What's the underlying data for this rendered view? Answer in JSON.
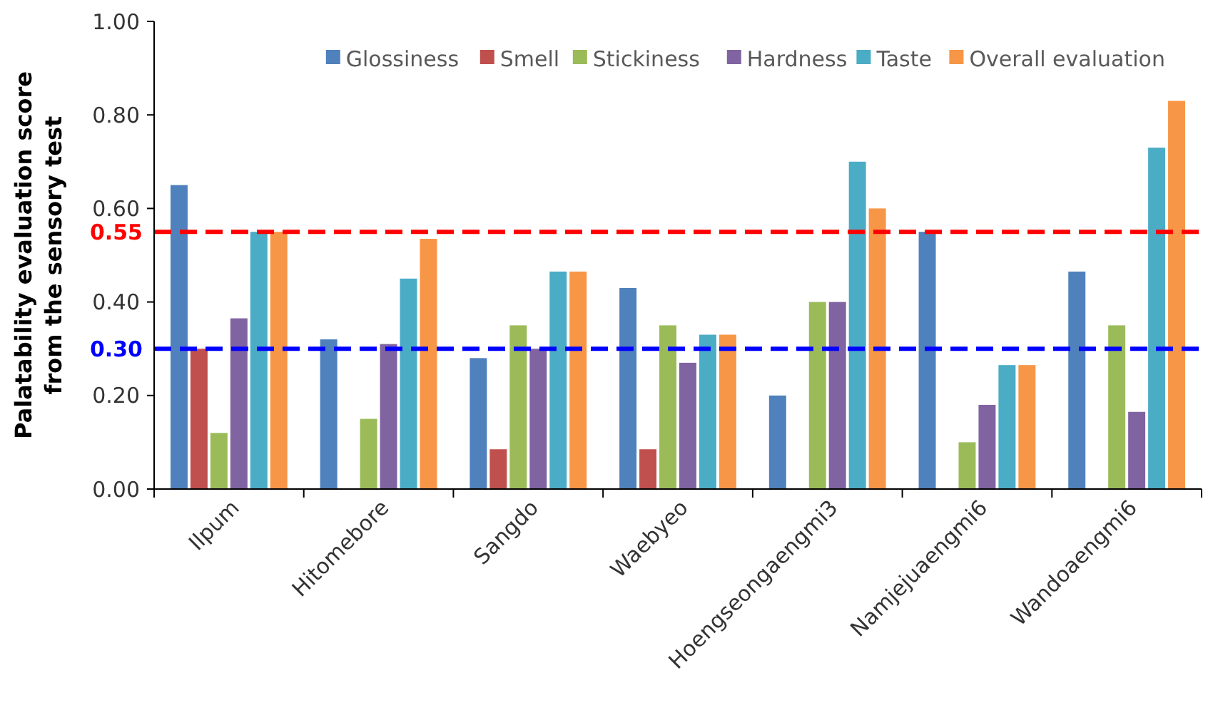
{
  "chart_data": {
    "type": "bar",
    "ylabel": "Palatability evaluation score\nfrom the sensory test",
    "categories": [
      "Ilpum",
      "Hitomebore",
      "Sangdo",
      "Waebyeo",
      "Hoengseongaengmi3",
      "Namjejuaengmi6",
      "Wandoaengmi6"
    ],
    "series": [
      {
        "name": "Glossiness",
        "color": "#4f81bd",
        "values": [
          0.65,
          0.32,
          0.28,
          0.43,
          0.2,
          0.55,
          0.465
        ]
      },
      {
        "name": "Smell",
        "color": "#c0504d",
        "values": [
          0.3,
          null,
          0.085,
          0.085,
          null,
          null,
          null
        ]
      },
      {
        "name": "Stickiness",
        "color": "#9bbb59",
        "values": [
          0.12,
          0.15,
          0.35,
          0.35,
          0.4,
          0.1,
          0.35
        ]
      },
      {
        "name": "Hardness",
        "color": "#8064a2",
        "values": [
          0.365,
          0.31,
          0.3,
          0.27,
          0.4,
          0.18,
          0.165
        ]
      },
      {
        "name": "Taste",
        "color": "#4bacc6",
        "values": [
          0.55,
          0.45,
          0.465,
          0.33,
          0.7,
          0.265,
          0.73
        ]
      },
      {
        "name": "Overall evaluation",
        "color": "#f79646",
        "values": [
          0.55,
          0.535,
          0.465,
          0.33,
          0.6,
          0.265,
          0.83
        ]
      }
    ],
    "ylim": [
      0,
      1
    ],
    "yticks": [
      {
        "value": 0,
        "label": "0.00"
      },
      {
        "value": 0.2,
        "label": "0.20"
      },
      {
        "value": 0.4,
        "label": "0.40"
      },
      {
        "value": 0.6,
        "label": "0.60"
      },
      {
        "value": 0.8,
        "label": "0.80"
      },
      {
        "value": 1,
        "label": "1.00"
      }
    ],
    "ref_lines": [
      {
        "axis": "y",
        "value": 0.55,
        "label": "0.55",
        "color": "#ff0000",
        "line_style": "dashed"
      },
      {
        "axis": "y",
        "value": 0.3,
        "label": "0.30",
        "color": "#0000ff",
        "line_style": "dashed"
      }
    ],
    "legend": "top right",
    "grid": false
  }
}
